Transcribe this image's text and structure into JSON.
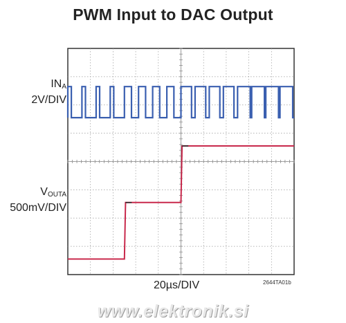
{
  "chart_data": {
    "type": "line",
    "title": "PWM Input to DAC Output",
    "xlabel": "20µs/DIV",
    "figure_code": "2644TA01b",
    "grid": true,
    "x_divisions": 10,
    "y_divisions": 8,
    "xlim": [
      0,
      200
    ],
    "x_unit": "µs",
    "channels": [
      {
        "label_main": "IN",
        "label_sub": "A",
        "scale": "2V/DIV",
        "color": "#3a5fb0",
        "waveform": "pwm",
        "period": 12.5,
        "low": 0,
        "high": 2.2,
        "y_unit": "V",
        "duty_segments": [
          {
            "t_start": 0,
            "t_end": 50,
            "duty": 0.25
          },
          {
            "t_start": 50,
            "t_end": 100,
            "duty": 0.5
          },
          {
            "t_start": 100,
            "t_end": 150,
            "duty": 0.75
          },
          {
            "t_start": 150,
            "t_end": 200,
            "duty": 0.9
          }
        ]
      },
      {
        "label_main": "V",
        "label_sub": "OUTA",
        "scale": "500mV/DIV",
        "color": "#c8284b",
        "waveform": "steps",
        "y_unit": "mV",
        "x": [
          0,
          50,
          51,
          100,
          101,
          200
        ],
        "y": [
          0,
          0,
          1000,
          1000,
          2000,
          2000
        ]
      }
    ]
  },
  "watermark": "www.elektronik.si"
}
